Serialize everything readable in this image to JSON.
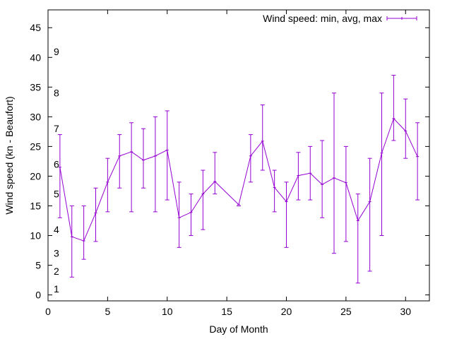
{
  "chart_data": {
    "type": "line",
    "xlabel": "Day of Month",
    "ylabel": "Wind speed (kn - Beaufort)",
    "xlim": [
      0,
      32
    ],
    "ylim": [
      -1,
      48
    ],
    "xticks": [
      0,
      5,
      10,
      15,
      20,
      25,
      30
    ],
    "yticks": [
      0,
      5,
      10,
      15,
      20,
      25,
      30,
      35,
      40,
      45
    ],
    "grid": false,
    "legend_position": "top-right",
    "series": [
      {
        "name": "Wind speed: min, avg, max",
        "color": "#9400d3",
        "points": [
          {
            "x": 1,
            "avg": 21.5,
            "min": 13,
            "max": 27
          },
          {
            "x": 2,
            "avg": 9.8,
            "min": 3,
            "max": 15
          },
          {
            "x": 3,
            "avg": 9.1,
            "min": 6,
            "max": 15
          },
          {
            "x": 4,
            "avg": 13.8,
            "min": 9,
            "max": 18
          },
          {
            "x": 5,
            "avg": 19,
            "min": 14,
            "max": 23
          },
          {
            "x": 6,
            "avg": 23.4,
            "min": 18,
            "max": 27
          },
          {
            "x": 7,
            "avg": 24.1,
            "min": 14,
            "max": 29
          },
          {
            "x": 8,
            "avg": 22.7,
            "min": 18,
            "max": 28
          },
          {
            "x": 9,
            "avg": 23.4,
            "min": 14,
            "max": 30
          },
          {
            "x": 10,
            "avg": 24.4,
            "min": 16,
            "max": 31
          },
          {
            "x": 11,
            "avg": 13,
            "min": 8,
            "max": 19
          },
          {
            "x": 12,
            "avg": 13.9,
            "min": 10,
            "max": 17
          },
          {
            "x": 13,
            "avg": 17,
            "min": 11,
            "max": 21
          },
          {
            "x": 14,
            "avg": 19.1,
            "min": 17,
            "max": 24
          },
          {
            "x": 16,
            "avg": 15.2,
            "min": 15,
            "max": 15
          },
          {
            "x": 17,
            "avg": 23.4,
            "min": 19,
            "max": 27
          },
          {
            "x": 18,
            "avg": 25.9,
            "min": 21,
            "max": 32
          },
          {
            "x": 19,
            "avg": 18.1,
            "min": 14,
            "max": 21
          },
          {
            "x": 20,
            "avg": 15.7,
            "min": 8,
            "max": 19
          },
          {
            "x": 21,
            "avg": 20.1,
            "min": 16,
            "max": 24
          },
          {
            "x": 22,
            "avg": 20.5,
            "min": 16,
            "max": 25
          },
          {
            "x": 23,
            "avg": 18.6,
            "min": 13,
            "max": 26
          },
          {
            "x": 24,
            "avg": 19.7,
            "min": 7,
            "max": 34
          },
          {
            "x": 25,
            "avg": 18.9,
            "min": 9,
            "max": 25
          },
          {
            "x": 26,
            "avg": 12.5,
            "min": 2,
            "max": 17
          },
          {
            "x": 27,
            "avg": 15.7,
            "min": 4,
            "max": 23
          },
          {
            "x": 28,
            "avg": 23.9,
            "min": 10,
            "max": 34
          },
          {
            "x": 29,
            "avg": 29.7,
            "min": 26,
            "max": 37
          },
          {
            "x": 30,
            "avg": 27.6,
            "min": 23,
            "max": 33
          },
          {
            "x": 31,
            "avg": 23.3,
            "min": 16,
            "max": 29
          }
        ]
      }
    ],
    "beaufort_labels": [
      {
        "label": "1",
        "y": 1
      },
      {
        "label": "2",
        "y": 4
      },
      {
        "label": "3",
        "y": 7
      },
      {
        "label": "4",
        "y": 11
      },
      {
        "label": "5",
        "y": 17
      },
      {
        "label": "6",
        "y": 22
      },
      {
        "label": "7",
        "y": 28
      },
      {
        "label": "8",
        "y": 34
      },
      {
        "label": "9",
        "y": 41
      }
    ]
  }
}
